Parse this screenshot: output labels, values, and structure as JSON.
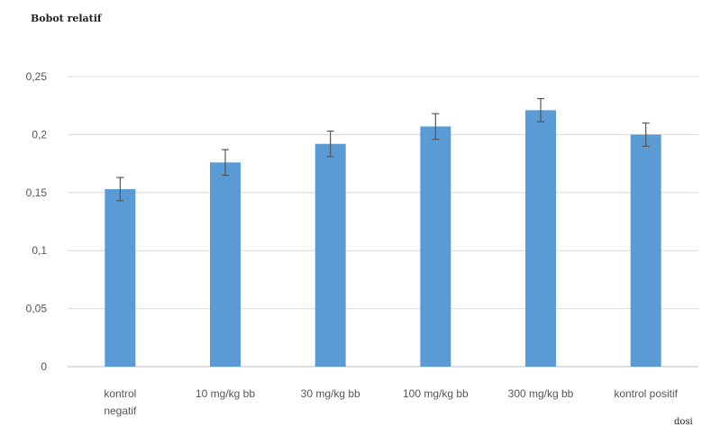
{
  "chart_data": {
    "type": "bar",
    "title": "Bobot relatif",
    "xlabel": "dosi",
    "ylabel": "",
    "ylim": [
      0,
      0.25
    ],
    "yticks": [
      "0",
      "0,05",
      "0,1",
      "0,15",
      "0,2",
      "0,25"
    ],
    "ytick_values": [
      0,
      0.05,
      0.1,
      0.15,
      0.2,
      0.25
    ],
    "grid": true,
    "legend": "none",
    "categories": [
      [
        "kontrol",
        "negatif"
      ],
      [
        "10 mg/kg bb"
      ],
      [
        "30 mg/kg bb"
      ],
      [
        "100 mg/kg bb"
      ],
      [
        "300 mg/kg bb"
      ],
      [
        "kontrol positif"
      ]
    ],
    "values": [
      0.153,
      0.176,
      0.192,
      0.207,
      0.221,
      0.2
    ],
    "error": [
      0.01,
      0.011,
      0.011,
      0.011,
      0.01,
      0.01
    ],
    "colors": {
      "bar": "#5b9bd5",
      "error": "#555555",
      "grid": "#d9d9d9",
      "axis": "#bfbfbf"
    }
  }
}
